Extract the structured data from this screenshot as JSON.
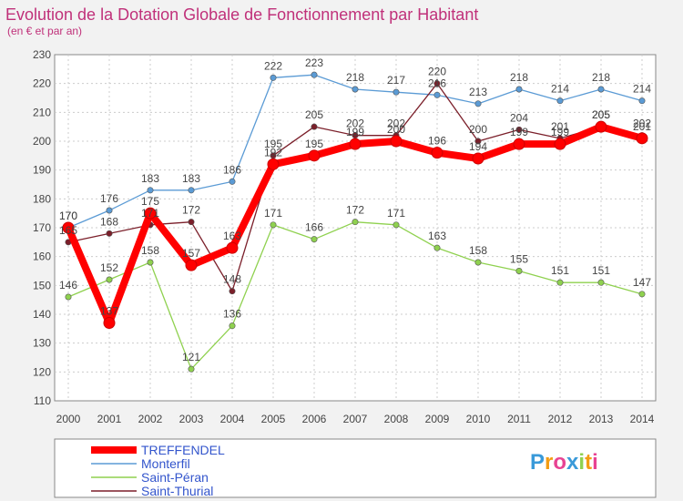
{
  "chart_data": {
    "type": "line",
    "title": "Evolution de la Dotation Globale de Fonctionnement par Habitant",
    "subtitle": "(en € et par an)",
    "x": [
      2000,
      2001,
      2002,
      2003,
      2004,
      2005,
      2006,
      2007,
      2008,
      2009,
      2010,
      2011,
      2012,
      2013,
      2014
    ],
    "ylim": [
      110,
      230
    ],
    "yticks": [
      110,
      120,
      130,
      140,
      150,
      160,
      170,
      180,
      190,
      200,
      210,
      220,
      230
    ],
    "grid": true,
    "legend_position": "bottom-left",
    "series": [
      {
        "name": "Monterfil",
        "color": "#5b9bd5",
        "values": [
          170,
          176,
          183,
          183,
          186,
          222,
          223,
          218,
          217,
          216,
          213,
          218,
          214,
          218,
          214
        ]
      },
      {
        "name": "Saint-Péran",
        "color": "#8fd14f",
        "values": [
          146,
          152,
          158,
          121,
          136,
          171,
          166,
          172,
          171,
          163,
          158,
          155,
          151,
          151,
          147
        ]
      },
      {
        "name": "Saint-Thurial",
        "color": "#7b1f2a",
        "values": [
          165,
          168,
          171,
          172,
          148,
          195,
          205,
          202,
          202,
          220,
          200,
          204,
          201,
          205,
          202
        ]
      },
      {
        "name": "TREFFENDEL",
        "color": "#ff0000",
        "values": [
          170,
          137,
          175,
          157,
          163,
          192,
          195,
          199,
          200,
          196,
          194,
          199,
          199,
          205,
          201
        ]
      }
    ],
    "legend_order": [
      "TREFFENDEL",
      "Monterfil",
      "Saint-Péran",
      "Saint-Thurial"
    ]
  },
  "logo": {
    "text": "Proxiti"
  }
}
